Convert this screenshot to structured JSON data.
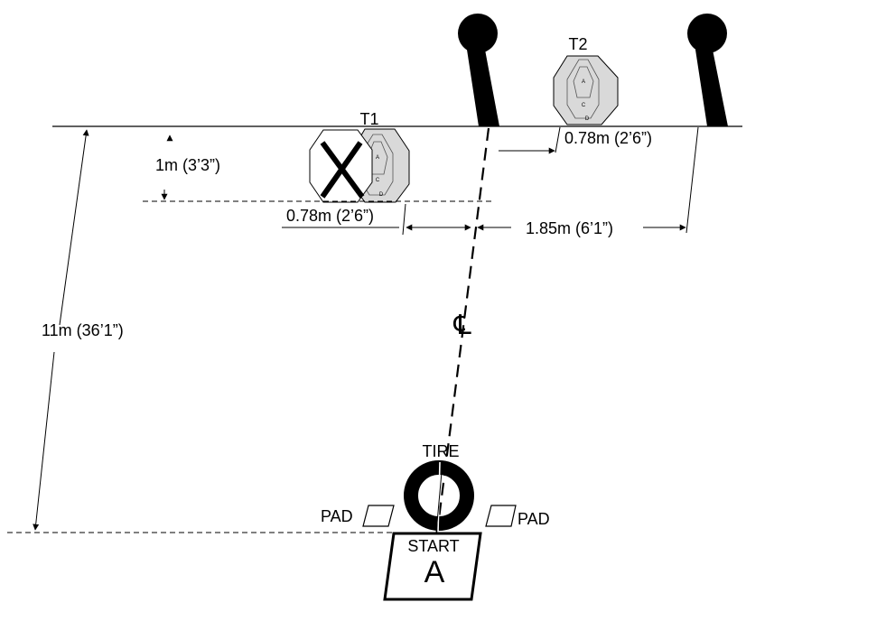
{
  "targets": {
    "t1_label": "T1",
    "t2_label": "T2",
    "target_zone_letters": [
      "A",
      "C",
      "D"
    ]
  },
  "dimensions": {
    "height_1m": "1m (3’3”)",
    "offset_t1": "0.78m (2’6”)",
    "offset_t2": "0.78m (2’6”)",
    "spread_pole": "1.85m (6’1”)",
    "distance_11m": "11m (36’1”)"
  },
  "centerline_symbol": "℄",
  "tire_label": "TIRE",
  "pad_left_label": "PAD",
  "pad_right_label": "PAD",
  "start_box": {
    "label": "START",
    "letter": "A"
  },
  "colors": {
    "target_fill": "#d9d9d9",
    "no_shoot_fill": "#ffffff",
    "line": "#000000"
  }
}
